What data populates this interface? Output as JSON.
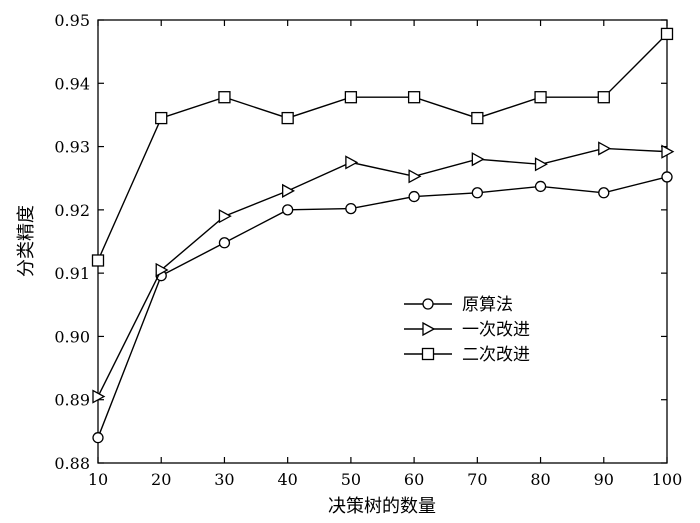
{
  "chart_data": {
    "type": "line",
    "title": "",
    "xlabel": "决策树的数量",
    "ylabel": "分类精度",
    "x": [
      10,
      20,
      30,
      40,
      50,
      60,
      70,
      80,
      90,
      100
    ],
    "xlim": [
      10,
      100
    ],
    "ylim": [
      0.88,
      0.95
    ],
    "xticks": [
      "10",
      "20",
      "30",
      "40",
      "50",
      "60",
      "70",
      "80",
      "90",
      "100"
    ],
    "yticks": [
      "0.88",
      "0.89",
      "0.90",
      "0.91",
      "0.92",
      "0.93",
      "0.94",
      "0.95"
    ],
    "grid": false,
    "legend_position": "center-right",
    "series": [
      {
        "name": "原算法",
        "marker": "circle",
        "values": [
          0.884,
          0.9096,
          0.9148,
          0.92,
          0.9202,
          0.9221,
          0.9227,
          0.9237,
          0.9227,
          0.9252
        ]
      },
      {
        "name": "一次改进",
        "marker": "triangle-right",
        "values": [
          0.8905,
          0.9105,
          0.919,
          0.923,
          0.9275,
          0.9253,
          0.928,
          0.9272,
          0.9297,
          0.9292
        ]
      },
      {
        "name": "二次改进",
        "marker": "square",
        "values": [
          0.912,
          0.9345,
          0.9378,
          0.9345,
          0.9378,
          0.9378,
          0.9345,
          0.9378,
          0.9378,
          0.9478
        ]
      }
    ]
  }
}
